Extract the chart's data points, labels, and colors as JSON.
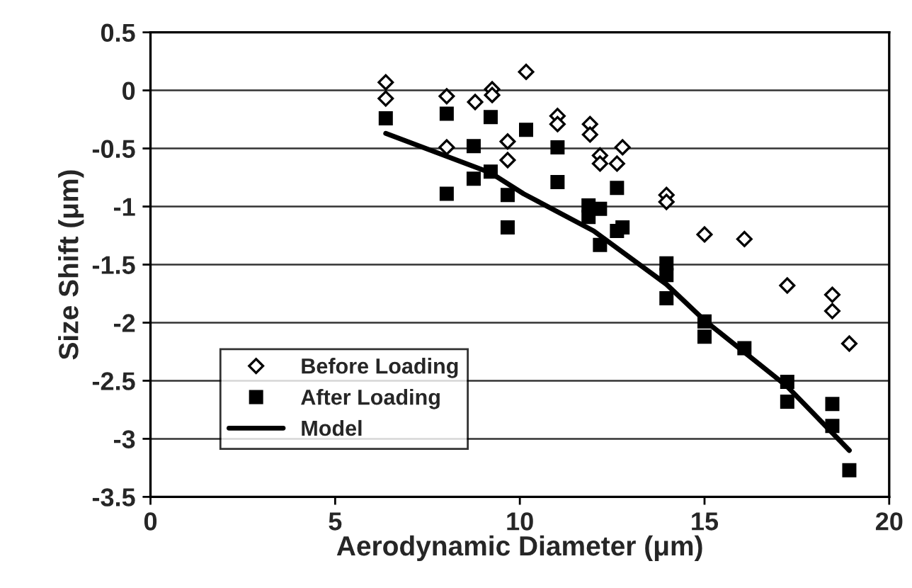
{
  "chart_data": {
    "type": "scatter",
    "xlabel": "Aerodynamic Diameter (μm)",
    "ylabel": "Size Shift (μm)",
    "xlim": [
      0,
      20
    ],
    "xticks": [
      0,
      5,
      10,
      15,
      20
    ],
    "ylim": [
      -3.5,
      0.5
    ],
    "yticks": [
      -3.5,
      -3,
      -2.5,
      -2,
      -1.5,
      -1,
      -0.5,
      0,
      0.5
    ],
    "grid": "y",
    "legend": "bottom left",
    "series": [
      {
        "name": "Before Loading",
        "color": "#000000",
        "marker": "diamond",
        "x": [
          6.37,
          6.37,
          8.02,
          8.02,
          8.79,
          9.25,
          9.25,
          9.67,
          9.67,
          10.17,
          11.02,
          11.02,
          11.9,
          11.9,
          12.17,
          12.17,
          12.63,
          12.78,
          13.97,
          13.97,
          15.0,
          16.08,
          17.24,
          18.46,
          18.46,
          18.92
        ],
        "values": [
          0.07,
          -0.07,
          -0.05,
          -0.49,
          -0.1,
          0.01,
          -0.04,
          -0.44,
          -0.6,
          0.16,
          -0.22,
          -0.29,
          -0.29,
          -0.38,
          -0.56,
          -0.63,
          -0.63,
          -0.49,
          -0.9,
          -0.96,
          -1.24,
          -1.28,
          -1.68,
          -1.76,
          -1.9,
          -2.18
        ]
      },
      {
        "name": "After Loading",
        "color": "#000000",
        "marker": "square",
        "x": [
          6.37,
          8.02,
          8.02,
          8.75,
          8.75,
          9.21,
          9.21,
          9.67,
          9.67,
          10.17,
          11.02,
          11.02,
          11.86,
          11.86,
          12.17,
          12.17,
          12.63,
          12.63,
          12.78,
          13.97,
          13.97,
          13.97,
          15.0,
          15.0,
          16.08,
          17.24,
          17.24,
          18.46,
          18.46,
          18.92
        ],
        "values": [
          -0.24,
          -0.2,
          -0.89,
          -0.48,
          -0.76,
          -0.23,
          -0.7,
          -0.9,
          -1.18,
          -0.34,
          -0.49,
          -0.79,
          -0.99,
          -1.09,
          -1.02,
          -1.33,
          -0.84,
          -1.21,
          -1.18,
          -1.49,
          -1.59,
          -1.79,
          -1.99,
          -2.12,
          -2.22,
          -2.51,
          -2.68,
          -2.7,
          -2.89,
          -3.27
        ]
      },
      {
        "name": "Model",
        "type": "line",
        "color": "#000000",
        "marker": "none",
        "line_style": "solid",
        "x": [
          6.37,
          9.21,
          10.1,
          12.0,
          13.97,
          15.0,
          17.24,
          18.92
        ],
        "values": [
          -0.37,
          -0.71,
          -0.89,
          -1.21,
          -1.67,
          -1.98,
          -2.55,
          -3.1
        ]
      }
    ]
  }
}
